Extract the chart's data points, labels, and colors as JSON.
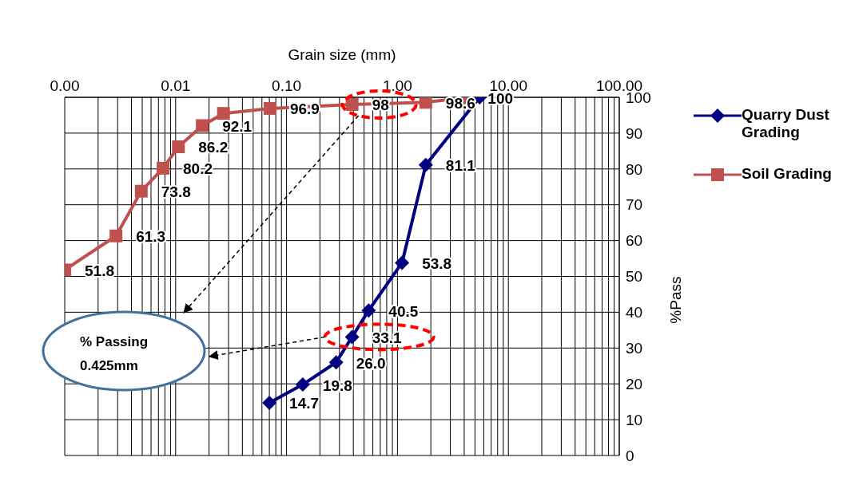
{
  "chart_data": {
    "type": "line",
    "xlabel": "Grain size (mm)",
    "ylabel": "%Pass",
    "log": "x",
    "xlim": [
      0.001,
      100
    ],
    "xticks": [
      {
        "value": 0.001,
        "label": "0.00"
      },
      {
        "value": 0.002,
        "label": null
      },
      {
        "value": 0.003,
        "label": null
      },
      {
        "value": 0.004,
        "label": null
      },
      {
        "value": 0.005,
        "label": null
      },
      {
        "value": 0.006,
        "label": null
      },
      {
        "value": 0.007,
        "label": null
      },
      {
        "value": 0.008,
        "label": null
      },
      {
        "value": 0.009,
        "label": null
      },
      {
        "value": 0.01,
        "label": "0.01"
      },
      {
        "value": 0.02,
        "label": null
      },
      {
        "value": 0.03,
        "label": null
      },
      {
        "value": 0.04,
        "label": null
      },
      {
        "value": 0.05,
        "label": null
      },
      {
        "value": 0.06,
        "label": null
      },
      {
        "value": 0.07,
        "label": null
      },
      {
        "value": 0.08,
        "label": null
      },
      {
        "value": 0.09,
        "label": null
      },
      {
        "value": 0.1,
        "label": "0.10"
      },
      {
        "value": 0.2,
        "label": null
      },
      {
        "value": 0.3,
        "label": null
      },
      {
        "value": 0.4,
        "label": null
      },
      {
        "value": 0.5,
        "label": null
      },
      {
        "value": 0.6,
        "label": null
      },
      {
        "value": 0.7,
        "label": null
      },
      {
        "value": 0.8,
        "label": null
      },
      {
        "value": 0.9,
        "label": null
      },
      {
        "value": 1,
        "label": "1.00"
      },
      {
        "value": 2,
        "label": null
      },
      {
        "value": 3,
        "label": null
      },
      {
        "value": 4,
        "label": null
      },
      {
        "value": 5,
        "label": null
      },
      {
        "value": 6,
        "label": null
      },
      {
        "value": 7,
        "label": null
      },
      {
        "value": 8,
        "label": null
      },
      {
        "value": 9,
        "label": null
      },
      {
        "value": 10,
        "label": "10.00"
      },
      {
        "value": 20,
        "label": null
      },
      {
        "value": 30,
        "label": null
      },
      {
        "value": 40,
        "label": null
      },
      {
        "value": 50,
        "label": null
      },
      {
        "value": 60,
        "label": null
      },
      {
        "value": 70,
        "label": null
      },
      {
        "value": 80,
        "label": null
      },
      {
        "value": 90,
        "label": null
      },
      {
        "value": 100,
        "label": "100.00"
      }
    ],
    "ylim": [
      0,
      100
    ],
    "yticks": [
      0,
      10,
      20,
      30,
      40,
      50,
      60,
      70,
      80,
      90,
      100
    ],
    "grid": true,
    "legend": "right",
    "series": [
      {
        "name": "Quarry Dust Grading",
        "color": "#000080",
        "marker": "diamond",
        "x": [
          0.07,
          0.14,
          0.28,
          0.39,
          0.55,
          1.1,
          1.8,
          5.5
        ],
        "values": [
          14.7,
          19.8,
          26.0,
          33.1,
          40.5,
          53.8,
          81.1,
          100
        ],
        "value_labels": [
          "14.7",
          "19.8",
          "26.0",
          "33.1",
          "40.5",
          "53.8",
          "81.1",
          null
        ]
      },
      {
        "name": "Soil Grading",
        "color": "#c0504d",
        "marker": "square",
        "x": [
          0.001,
          0.0029,
          0.0049,
          0.0077,
          0.0106,
          0.0174,
          0.027,
          0.071,
          0.39,
          1.8,
          4.3
        ],
        "values": [
          51.8,
          61.3,
          73.8,
          80.2,
          86.2,
          92.1,
          95.5,
          96.9,
          98,
          98.6,
          100
        ],
        "value_labels": [
          "51.8",
          "61.3",
          "73.8",
          "80.2",
          "86.2",
          "92.1",
          null,
          "96.9",
          "98",
          "98.6",
          "100"
        ]
      }
    ],
    "annotations": [
      "% Passing 0.425mm"
    ]
  }
}
